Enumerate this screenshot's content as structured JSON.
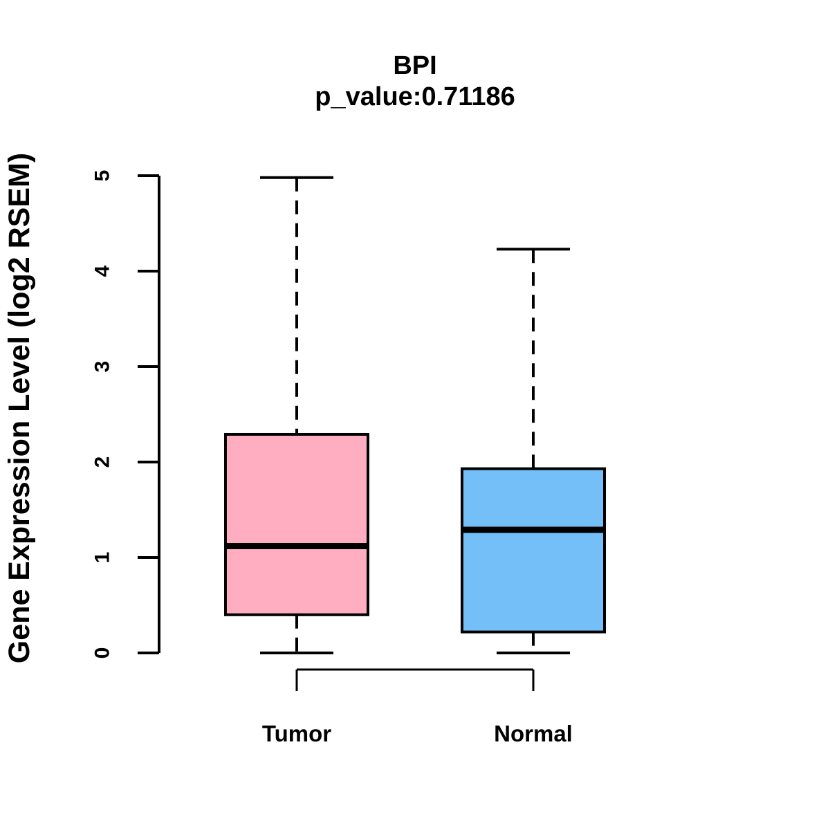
{
  "chart_data": {
    "type": "boxplot",
    "title": "BPI",
    "subtitle": "p_value:0.71186",
    "ylabel": "Gene Expression Level (log2 RSEM)",
    "xlabel": "",
    "ylim": [
      0,
      5
    ],
    "yticks": [
      0,
      1,
      2,
      3,
      4,
      5
    ],
    "categories": [
      "Tumor",
      "Normal"
    ],
    "groups": [
      {
        "label": "Tumor",
        "fill_color": "#ffadc0",
        "stats": {
          "min": 0,
          "q1": 0.4,
          "median": 1.12,
          "q3": 2.29,
          "max": 4.98
        }
      },
      {
        "label": "Normal",
        "fill_color": "#74bff8",
        "stats": {
          "min": 0,
          "q1": 0.22,
          "median": 1.29,
          "q3": 1.93,
          "max": 4.23
        }
      }
    ],
    "styles": {
      "box_border_color": "#000000",
      "median_color": "#000000",
      "whisker_style": "dashed",
      "background_color": "#ffffff"
    },
    "layout": {
      "grid": false,
      "legend": false,
      "y_tick_labels_rotated": true,
      "comparison_bracket_between": [
        "Tumor",
        "Normal"
      ]
    }
  }
}
